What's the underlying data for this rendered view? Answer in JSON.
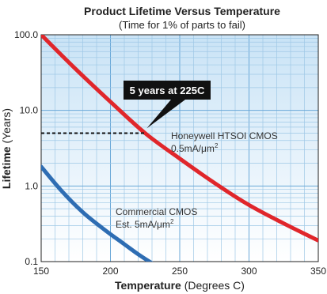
{
  "chart_data": {
    "type": "line",
    "title": "Product Lifetime Versus Temperature",
    "subtitle": "(Time for 1% of parts to fail)",
    "xlabel_bold": "Temperature",
    "xlabel_rest": " (Degrees C)",
    "ylabel_bold": "Lifetime",
    "ylabel_rest": " (Years)",
    "x_scale": "linear",
    "y_scale": "log",
    "xlim": [
      150,
      350
    ],
    "ylim": [
      0.1,
      100
    ],
    "x_ticks": [
      "150",
      "200",
      "250",
      "300",
      "350"
    ],
    "y_ticks": [
      "100.0",
      "10.0",
      "1.0",
      "0.1"
    ],
    "grid": true,
    "series": [
      {
        "name_line1": "Honeywell HTSOI CMOS",
        "name_line2": "0.5mA/μm",
        "name_sup": "2",
        "color": "#e0262b",
        "x": [
          150,
          175,
          200,
          225,
          250,
          275,
          300,
          325,
          350
        ],
        "y": [
          100,
          35,
          13,
          5,
          2.3,
          1.1,
          0.56,
          0.32,
          0.19
        ]
      },
      {
        "name_line1": "Commercial CMOS",
        "name_line2": "Est. 5mA/μm",
        "name_sup": "2",
        "color": "#2e6db3",
        "x": [
          150,
          165,
          180,
          195,
          210,
          220,
          230
        ],
        "y": [
          1.8,
          0.85,
          0.45,
          0.27,
          0.17,
          0.125,
          0.095
        ]
      }
    ],
    "annotation": {
      "text": "5 years at 225C",
      "x": 225,
      "y": 5
    }
  }
}
